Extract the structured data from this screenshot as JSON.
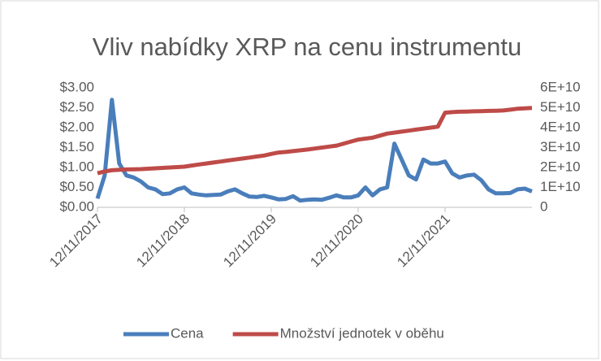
{
  "chart_data": {
    "type": "line",
    "title": "Vliv nabídky XRP na cenu instrumentu",
    "x": [
      "12/11/2017",
      "12/12/2017",
      "12/01/2018",
      "12/02/2018",
      "12/03/2018",
      "12/04/2018",
      "12/05/2018",
      "12/06/2018",
      "12/07/2018",
      "12/08/2018",
      "12/09/2018",
      "12/10/2018",
      "12/11/2018",
      "12/12/2018",
      "12/01/2019",
      "12/02/2019",
      "12/03/2019",
      "12/04/2019",
      "12/05/2019",
      "12/06/2019",
      "12/07/2019",
      "12/08/2019",
      "12/09/2019",
      "12/10/2019",
      "12/11/2019",
      "12/12/2019",
      "12/01/2020",
      "12/02/2020",
      "12/03/2020",
      "12/04/2020",
      "12/05/2020",
      "12/06/2020",
      "12/07/2020",
      "12/08/2020",
      "12/09/2020",
      "12/10/2020",
      "12/11/2020",
      "12/12/2020",
      "12/01/2021",
      "12/02/2021",
      "12/03/2021",
      "12/04/2021",
      "12/05/2021",
      "12/06/2021",
      "12/07/2021",
      "12/08/2021",
      "12/09/2021",
      "12/10/2021",
      "12/11/2021",
      "12/12/2021",
      "12/01/2022",
      "12/02/2022",
      "12/03/2022",
      "12/04/2022",
      "12/05/2022",
      "12/06/2022",
      "12/07/2022",
      "12/08/2022",
      "12/09/2022",
      "12/10/2022",
      "12/11/2022"
    ],
    "series": [
      {
        "name": "Cena",
        "color": "#4a7ebb",
        "axis": "y",
        "values": [
          0.22,
          0.8,
          2.7,
          1.1,
          0.8,
          0.75,
          0.65,
          0.5,
          0.45,
          0.33,
          0.35,
          0.45,
          0.5,
          0.35,
          0.32,
          0.3,
          0.31,
          0.32,
          0.4,
          0.45,
          0.35,
          0.27,
          0.26,
          0.29,
          0.25,
          0.2,
          0.21,
          0.28,
          0.17,
          0.19,
          0.2,
          0.19,
          0.24,
          0.3,
          0.25,
          0.25,
          0.3,
          0.5,
          0.3,
          0.45,
          0.5,
          1.6,
          1.2,
          0.8,
          0.7,
          1.2,
          1.1,
          1.1,
          1.15,
          0.85,
          0.75,
          0.8,
          0.82,
          0.68,
          0.45,
          0.35,
          0.35,
          0.36,
          0.45,
          0.47,
          0.4
        ]
      },
      {
        "name": "Množství jednotek v oběhu",
        "color": "#be4b48",
        "axis": "y2",
        "values": [
          17100000000.0,
          18000000000.0,
          18600000000.0,
          18800000000.0,
          19000000000.0,
          19100000000.0,
          19200000000.0,
          19400000000.0,
          19600000000.0,
          19800000000.0,
          20000000000.0,
          20200000000.0,
          20400000000.0,
          21000000000.0,
          21500000000.0,
          22000000000.0,
          22500000000.0,
          23000000000.0,
          23500000000.0,
          24000000000.0,
          24500000000.0,
          25000000000.0,
          25500000000.0,
          26000000000.0,
          26800000000.0,
          27500000000.0,
          27800000000.0,
          28200000000.0,
          28600000000.0,
          29000000000.0,
          29500000000.0,
          30000000000.0,
          30500000000.0,
          31000000000.0,
          32000000000.0,
          33000000000.0,
          34000000000.0,
          34500000000.0,
          35000000000.0,
          36000000000.0,
          37000000000.0,
          37500000000.0,
          38000000000.0,
          38500000000.0,
          39000000000.0,
          39500000000.0,
          40000000000.0,
          40500000000.0,
          47500000000.0,
          47800000000.0,
          48000000000.0,
          48100000000.0,
          48200000000.0,
          48300000000.0,
          48400000000.0,
          48500000000.0,
          48600000000.0,
          49000000000.0,
          49500000000.0,
          49700000000.0,
          49900000000.0
        ]
      }
    ],
    "xticks": [
      "12/11/2017",
      "12/11/2018",
      "12/11/2019",
      "12/11/2020",
      "12/11/2021"
    ],
    "ylim": [
      0,
      3
    ],
    "yticks": [
      {
        "value": 0,
        "label": "$0.00"
      },
      {
        "value": 0.5,
        "label": "$0.50"
      },
      {
        "value": 1,
        "label": "$1.00"
      },
      {
        "value": 1.5,
        "label": "$1.50"
      },
      {
        "value": 2,
        "label": "$2.00"
      },
      {
        "value": 2.5,
        "label": "$2.50"
      },
      {
        "value": 3,
        "label": "$3.00"
      }
    ],
    "y2lim": [
      0,
      60000000000.0
    ],
    "y2ticks": [
      0,
      {
        "value": 10000000000.0,
        "label": "1E+10"
      },
      {
        "value": 20000000000.0,
        "label": "2E+10"
      },
      {
        "value": 30000000000.0,
        "label": "3E+10"
      },
      {
        "value": 40000000000.0,
        "label": "4E+10"
      },
      {
        "value": 50000000000.0,
        "label": "5E+10"
      },
      {
        "value": 60000000000.0,
        "label": "6E+10"
      }
    ],
    "legend": "bottom"
  }
}
